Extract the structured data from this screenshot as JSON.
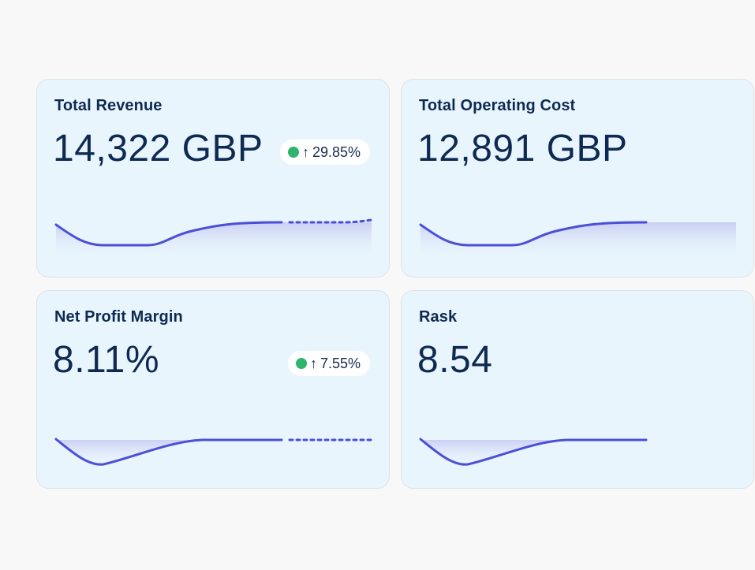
{
  "cards": [
    {
      "title": "Total Revenue",
      "value": "14,322 GBP",
      "change": "29.85%",
      "trend": "up",
      "trend_color": "#2fb56b"
    },
    {
      "title": "Total Operating Cost",
      "value": "12,891 GBP"
    },
    {
      "title": "Net Profit Margin",
      "value": "8.11%",
      "change": "7.55%",
      "trend": "up",
      "trend_color": "#2fb56b"
    },
    {
      "title": "Rask",
      "value": "8.54"
    }
  ],
  "colors": {
    "line": "#4b4fd6",
    "card_bg": "#e9f5fc",
    "text": "#0f2a52"
  },
  "icons": {
    "trend_indicator": "green-dot-icon",
    "arrow": "arrow-up-icon"
  }
}
